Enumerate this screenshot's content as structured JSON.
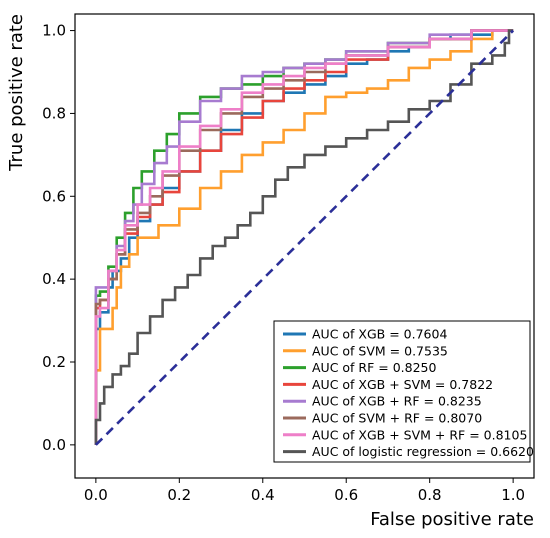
{
  "chart_data": {
    "type": "line",
    "title": "",
    "xlabel": "False positive rate",
    "ylabel": "True positive rate",
    "xlim": [
      -0.05,
      1.05
    ],
    "ylim": [
      -0.08,
      1.04
    ],
    "x_ticks": [
      "0.0",
      "0.2",
      "0.4",
      "0.6",
      "0.8",
      "1.0"
    ],
    "y_ticks": [
      "0.0",
      "0.2",
      "0.4",
      "0.6",
      "0.8",
      "1.0"
    ],
    "grid": false,
    "legend_position": "bottom-right",
    "diagonal": {
      "x": [
        0,
        1
      ],
      "y": [
        0,
        1
      ],
      "color": "#2b2f98",
      "style": "dashed"
    },
    "series": [
      {
        "name": "AUC of XGB = 0.7604",
        "color": "#1f77b4",
        "x": [
          0,
          0.01,
          0.01,
          0.03,
          0.04,
          0.06,
          0.08,
          0.1,
          0.13,
          0.16,
          0.2,
          0.25,
          0.3,
          0.35,
          0.4,
          0.45,
          0.5,
          0.55,
          0.6,
          0.65,
          0.7,
          0.75,
          0.8,
          0.85,
          0.9,
          0.95,
          1.0
        ],
        "y": [
          0,
          0.28,
          0.3,
          0.32,
          0.38,
          0.42,
          0.45,
          0.5,
          0.54,
          0.58,
          0.62,
          0.66,
          0.71,
          0.76,
          0.8,
          0.83,
          0.85,
          0.87,
          0.89,
          0.92,
          0.93,
          0.95,
          0.96,
          0.98,
          0.99,
          0.99,
          1.0
        ]
      },
      {
        "name": "AUC of SVM = 0.7535",
        "color": "#ff9f2e",
        "x": [
          0,
          0.01,
          0.01,
          0.04,
          0.05,
          0.06,
          0.08,
          0.1,
          0.15,
          0.2,
          0.25,
          0.3,
          0.35,
          0.4,
          0.45,
          0.5,
          0.55,
          0.6,
          0.65,
          0.7,
          0.75,
          0.8,
          0.85,
          0.9,
          0.95,
          1.0
        ],
        "y": [
          0,
          0.18,
          0.19,
          0.28,
          0.33,
          0.38,
          0.43,
          0.46,
          0.5,
          0.53,
          0.57,
          0.62,
          0.66,
          0.7,
          0.73,
          0.76,
          0.8,
          0.84,
          0.85,
          0.86,
          0.88,
          0.91,
          0.93,
          0.95,
          0.98,
          1.0
        ]
      },
      {
        "name": "AUC of RF = 0.8250",
        "color": "#2ca02c",
        "x": [
          0,
          0.01,
          0.03,
          0.05,
          0.07,
          0.09,
          0.11,
          0.14,
          0.17,
          0.2,
          0.25,
          0.3,
          0.35,
          0.4,
          0.45,
          0.5,
          0.55,
          0.6,
          0.7,
          0.8,
          0.9,
          1.0
        ],
        "y": [
          0,
          0.36,
          0.37,
          0.43,
          0.5,
          0.56,
          0.62,
          0.66,
          0.71,
          0.75,
          0.8,
          0.84,
          0.86,
          0.87,
          0.89,
          0.91,
          0.92,
          0.93,
          0.95,
          0.97,
          0.98,
          1.0
        ]
      },
      {
        "name": "AUC of XGB + SVM = 0.7822",
        "color": "#e8453c",
        "x": [
          0,
          0.01,
          0.03,
          0.05,
          0.07,
          0.1,
          0.13,
          0.16,
          0.2,
          0.25,
          0.3,
          0.35,
          0.4,
          0.45,
          0.5,
          0.55,
          0.6,
          0.7,
          0.8,
          0.9,
          1.0
        ],
        "y": [
          0,
          0.33,
          0.35,
          0.4,
          0.46,
          0.51,
          0.55,
          0.58,
          0.61,
          0.66,
          0.71,
          0.75,
          0.79,
          0.83,
          0.86,
          0.88,
          0.9,
          0.93,
          0.96,
          0.98,
          1.0
        ]
      },
      {
        "name": "AUC of XGB + RF = 0.8235",
        "color": "#a77bd0",
        "x": [
          0,
          0.01,
          0.03,
          0.05,
          0.07,
          0.09,
          0.11,
          0.14,
          0.17,
          0.2,
          0.25,
          0.3,
          0.35,
          0.4,
          0.45,
          0.5,
          0.55,
          0.6,
          0.7,
          0.8,
          0.9,
          1.0
        ],
        "y": [
          0,
          0.38,
          0.38,
          0.42,
          0.48,
          0.54,
          0.58,
          0.63,
          0.68,
          0.72,
          0.78,
          0.83,
          0.86,
          0.89,
          0.9,
          0.91,
          0.92,
          0.93,
          0.95,
          0.97,
          0.99,
          1.0
        ]
      },
      {
        "name": "AUC of SVM + RF = 0.8070",
        "color": "#9b6a5c",
        "x": [
          0,
          0.01,
          0.03,
          0.05,
          0.07,
          0.1,
          0.13,
          0.16,
          0.2,
          0.25,
          0.3,
          0.35,
          0.4,
          0.45,
          0.5,
          0.55,
          0.6,
          0.7,
          0.8,
          0.9,
          1.0
        ],
        "y": [
          0,
          0.34,
          0.35,
          0.4,
          0.46,
          0.52,
          0.56,
          0.6,
          0.65,
          0.71,
          0.76,
          0.8,
          0.84,
          0.86,
          0.88,
          0.9,
          0.92,
          0.94,
          0.96,
          0.98,
          1.0
        ]
      },
      {
        "name": "AUC of XGB + SVM + RF = 0.8105",
        "color": "#ee7fc8",
        "x": [
          0,
          0.01,
          0.03,
          0.05,
          0.07,
          0.1,
          0.13,
          0.16,
          0.2,
          0.25,
          0.3,
          0.35,
          0.4,
          0.45,
          0.5,
          0.55,
          0.6,
          0.7,
          0.8,
          0.9,
          1.0
        ],
        "y": [
          0,
          0.31,
          0.33,
          0.42,
          0.47,
          0.53,
          0.58,
          0.62,
          0.66,
          0.72,
          0.77,
          0.81,
          0.85,
          0.87,
          0.89,
          0.91,
          0.92,
          0.94,
          0.96,
          0.98,
          1.0
        ]
      },
      {
        "name": "AUC of logistic regression = 0.6620",
        "color": "#555555",
        "x": [
          0,
          0.01,
          0.02,
          0.04,
          0.06,
          0.08,
          0.1,
          0.13,
          0.16,
          0.19,
          0.22,
          0.25,
          0.28,
          0.31,
          0.34,
          0.37,
          0.4,
          0.43,
          0.46,
          0.5,
          0.55,
          0.6,
          0.65,
          0.7,
          0.75,
          0.8,
          0.85,
          0.9,
          0.95,
          0.98,
          0.99,
          1.0
        ],
        "y": [
          0,
          0.06,
          0.1,
          0.14,
          0.17,
          0.19,
          0.22,
          0.27,
          0.31,
          0.35,
          0.38,
          0.41,
          0.45,
          0.48,
          0.5,
          0.53,
          0.56,
          0.6,
          0.64,
          0.67,
          0.7,
          0.72,
          0.74,
          0.76,
          0.78,
          0.81,
          0.83,
          0.87,
          0.92,
          0.94,
          0.97,
          1.0
        ]
      }
    ]
  }
}
